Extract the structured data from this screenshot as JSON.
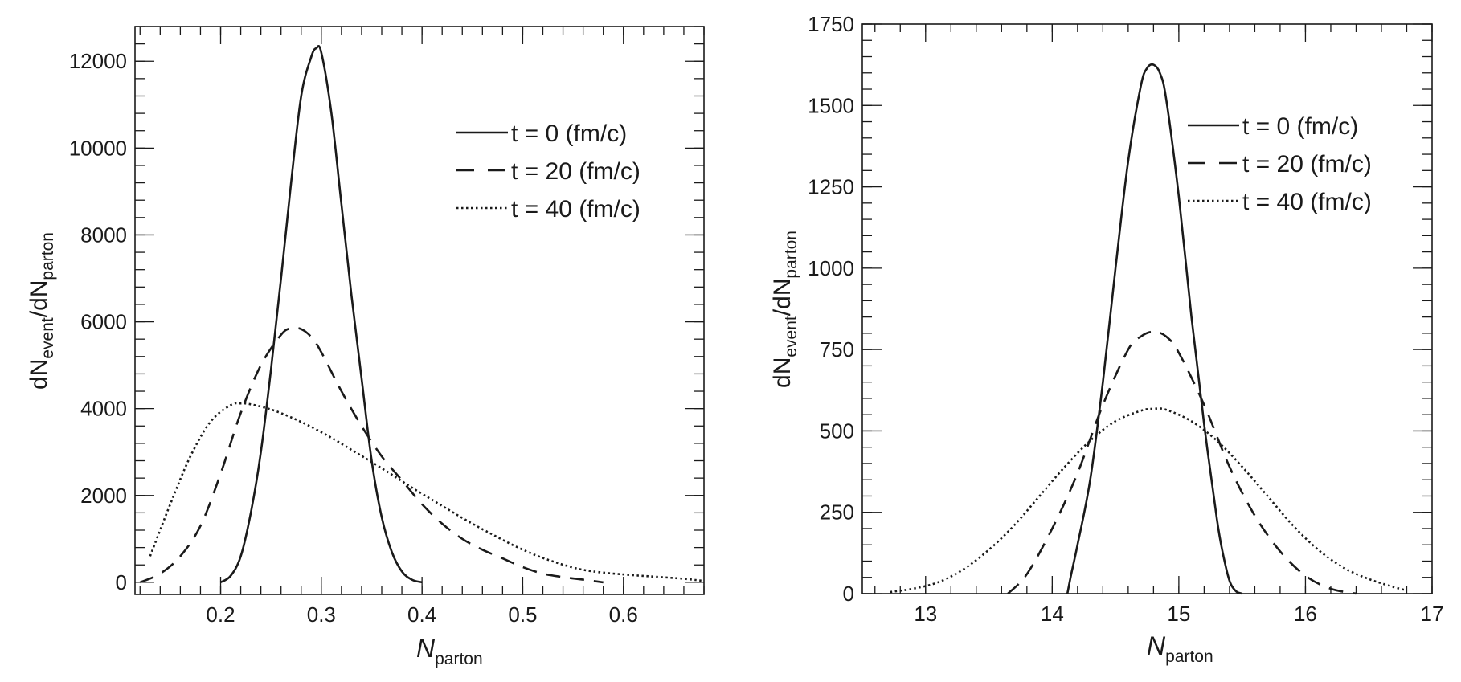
{
  "chart_data": [
    {
      "type": "line",
      "xlabel": {
        "main": "N",
        "sub": "parton"
      },
      "ylabel": {
        "parts": [
          [
            "dN",
            false
          ],
          [
            "event",
            true
          ],
          [
            "/dN",
            false
          ],
          [
            "parton",
            true
          ]
        ]
      },
      "xlim": [
        0.115,
        0.68
      ],
      "ylim": [
        -280,
        12800
      ],
      "xticks": [
        0.2,
        0.3,
        0.4,
        0.5,
        0.6
      ],
      "xtick_labels": [
        "0.2",
        "0.3",
        "0.4",
        "0.5",
        "0.6"
      ],
      "xminor": 0.02,
      "yticks": [
        0,
        2000,
        4000,
        6000,
        8000,
        10000,
        12000
      ],
      "ytick_labels": [
        "0",
        "2000",
        "4000",
        "6000",
        "8000",
        "10000",
        "12000"
      ],
      "yminor": 400,
      "legend_position": "top-right",
      "series": [
        {
          "name": "t = 0 (fm/c)",
          "dash": "solid",
          "x": [
            0.2,
            0.21,
            0.22,
            0.23,
            0.24,
            0.25,
            0.26,
            0.27,
            0.28,
            0.29,
            0.295,
            0.3,
            0.31,
            0.32,
            0.33,
            0.34,
            0.35,
            0.36,
            0.37,
            0.38,
            0.39,
            0.4
          ],
          "y": [
            0,
            150,
            600,
            1600,
            3000,
            4900,
            7000,
            9200,
            11200,
            12100,
            12300,
            12200,
            10800,
            8700,
            6600,
            4700,
            2800,
            1500,
            700,
            250,
            60,
            0
          ]
        },
        {
          "name": "t = 20 (fm/c)",
          "dash": "dashed",
          "x": [
            0.12,
            0.14,
            0.16,
            0.18,
            0.2,
            0.22,
            0.24,
            0.26,
            0.27,
            0.28,
            0.29,
            0.3,
            0.32,
            0.34,
            0.36,
            0.38,
            0.4,
            0.42,
            0.44,
            0.46,
            0.48,
            0.5,
            0.52,
            0.54,
            0.56,
            0.58
          ],
          "y": [
            0,
            200,
            600,
            1300,
            2500,
            3900,
            5000,
            5700,
            5850,
            5830,
            5650,
            5300,
            4400,
            3600,
            2900,
            2350,
            1800,
            1350,
            1000,
            750,
            550,
            350,
            200,
            120,
            60,
            0
          ]
        },
        {
          "name": "t = 40 (fm/c)",
          "dash": "dotted",
          "x": [
            0.13,
            0.15,
            0.17,
            0.19,
            0.21,
            0.22,
            0.23,
            0.25,
            0.27,
            0.29,
            0.31,
            0.33,
            0.35,
            0.37,
            0.39,
            0.41,
            0.43,
            0.45,
            0.47,
            0.49,
            0.51,
            0.53,
            0.55,
            0.57,
            0.6,
            0.63,
            0.66,
            0.68
          ],
          "y": [
            600,
            1800,
            2900,
            3700,
            4080,
            4120,
            4100,
            3980,
            3800,
            3580,
            3330,
            3050,
            2770,
            2480,
            2180,
            1900,
            1620,
            1350,
            1100,
            860,
            650,
            480,
            340,
            250,
            180,
            130,
            80,
            30
          ]
        }
      ]
    },
    {
      "type": "line",
      "xlabel": {
        "main": "N",
        "sub": "parton"
      },
      "ylabel": {
        "parts": [
          [
            "dN",
            false
          ],
          [
            "event",
            true
          ],
          [
            "/dN",
            false
          ],
          [
            "parton",
            true
          ]
        ]
      },
      "xlim": [
        12.5,
        17.0
      ],
      "ylim": [
        0,
        1750
      ],
      "xticks": [
        13,
        14,
        15,
        16,
        17
      ],
      "xtick_labels": [
        "13",
        "14",
        "15",
        "16",
        "17"
      ],
      "xminor": 0.2,
      "yticks": [
        0,
        250,
        500,
        750,
        1000,
        1250,
        1500,
        1750
      ],
      "ytick_labels": [
        "0",
        "250",
        "500",
        "750",
        "1000",
        "1250",
        "1500",
        "1750"
      ],
      "yminor": 50,
      "legend_position": "top-right",
      "series": [
        {
          "name": "t = 0 (fm/c)",
          "dash": "solid",
          "x": [
            14.12,
            14.15,
            14.2,
            14.3,
            14.4,
            14.5,
            14.6,
            14.7,
            14.75,
            14.8,
            14.85,
            14.9,
            15.0,
            15.1,
            15.2,
            15.3,
            15.35,
            15.4,
            15.45,
            15.5
          ],
          "y": [
            0,
            60,
            150,
            350,
            650,
            1000,
            1330,
            1560,
            1615,
            1625,
            1600,
            1520,
            1220,
            850,
            520,
            230,
            120,
            40,
            8,
            0
          ]
        },
        {
          "name": "t = 20 (fm/c)",
          "dash": "dashed",
          "x": [
            13.65,
            13.8,
            14.0,
            14.2,
            14.4,
            14.6,
            14.7,
            14.8,
            14.9,
            15.0,
            15.2,
            15.4,
            15.6,
            15.8,
            16.0,
            16.2,
            16.4
          ],
          "y": [
            0,
            60,
            200,
            370,
            580,
            750,
            790,
            805,
            790,
            740,
            580,
            390,
            240,
            130,
            55,
            15,
            0
          ]
        },
        {
          "name": "t = 40 (fm/c)",
          "dash": "dotted",
          "x": [
            12.72,
            12.9,
            13.1,
            13.3,
            13.5,
            13.7,
            13.9,
            14.1,
            14.3,
            14.5,
            14.7,
            14.8,
            14.9,
            15.1,
            15.3,
            15.5,
            15.7,
            15.9,
            16.1,
            16.3,
            16.5,
            16.7,
            16.8
          ],
          "y": [
            5,
            15,
            35,
            75,
            135,
            210,
            300,
            390,
            470,
            530,
            562,
            568,
            565,
            530,
            470,
            390,
            300,
            210,
            135,
            80,
            45,
            20,
            10
          ]
        }
      ]
    }
  ]
}
